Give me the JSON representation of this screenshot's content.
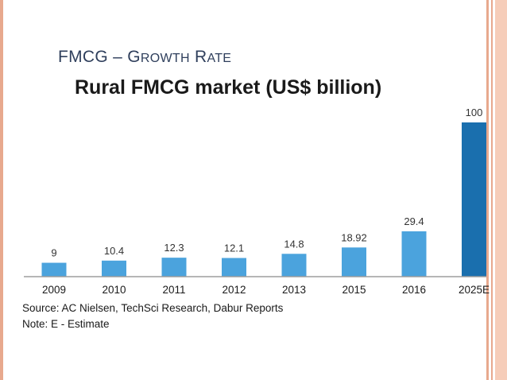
{
  "slide": {
    "title_first": "FMCG – G",
    "title_sc1": "ROWTH",
    "title_mid": " R",
    "title_sc2": "ATE"
  },
  "colors": {
    "bar": "#4ba3dd",
    "bar_highlight": "#1a6fae",
    "axis": "#9e9e9e",
    "accent_border": "#e8a98e",
    "title_text": "#2f3f5c"
  },
  "chart_data": {
    "type": "bar",
    "title": "Rural FMCG market (US$ billion)",
    "categories": [
      "2009",
      "2010",
      "2011",
      "2012",
      "2013",
      "2015",
      "2016",
      "2025E"
    ],
    "values": [
      9,
      10.4,
      12.3,
      12.1,
      14.8,
      18.92,
      29.4,
      100
    ],
    "data_labels": [
      "9",
      "10.4",
      "12.3",
      "12.1",
      "14.8",
      "18.92",
      "29.4",
      "100"
    ],
    "highlight_index": 7,
    "ylim": [
      0,
      100
    ],
    "xlabel": "",
    "ylabel": "",
    "grid": false,
    "source": "Source: AC Nielsen, TechSci Research, Dabur Reports",
    "note": "Note: E - Estimate"
  }
}
